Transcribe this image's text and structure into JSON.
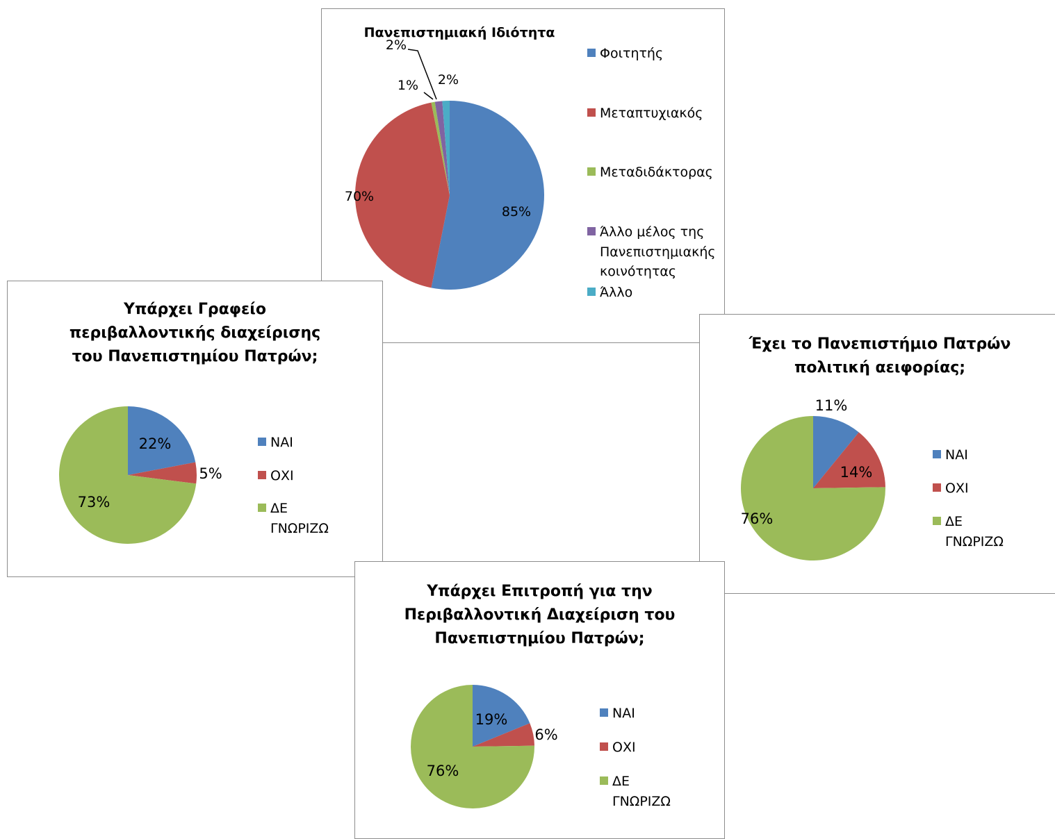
{
  "colors": {
    "blue": "#4f81bd",
    "red": "#c0504d",
    "green": "#9bbb59",
    "purple": "#8064a2",
    "cyan": "#4bacc6"
  },
  "chart_data": [
    {
      "id": "idiotita",
      "type": "pie",
      "title": "Πανεπιστημιακή Ιδιότητα",
      "slices": [
        {
          "label": "Φοιτητής",
          "value": 85,
          "data_label": "85%",
          "color": "#4f81bd"
        },
        {
          "label": "Μεταπτυχιακός",
          "value": 70,
          "data_label": "70%",
          "color": "#c0504d"
        },
        {
          "label": "Μεταδιδάκτορας",
          "value": 1,
          "data_label": "1%",
          "color": "#9bbb59"
        },
        {
          "label": "Άλλο μέλος της Πανεπιστημιακής κοινότητας",
          "value": 2,
          "data_label": "2%",
          "color": "#8064a2"
        },
        {
          "label": "Άλλο",
          "value": 2,
          "data_label": "2%",
          "color": "#4bacc6"
        }
      ],
      "legend_position": "right"
    },
    {
      "id": "grafeio",
      "type": "pie",
      "title": "Υπάρχει Γραφείο περιβαλλοντικής διαχείρισης του Πανεπιστημίου Πατρών;",
      "slices": [
        {
          "label": "ΝΑΙ",
          "value": 22,
          "data_label": "22%",
          "color": "#4f81bd"
        },
        {
          "label": "ΟΧΙ",
          "value": 5,
          "data_label": "5%",
          "color": "#c0504d"
        },
        {
          "label": "ΔΕ ΓΝΩΡΙΖΩ",
          "value": 73,
          "data_label": "73%",
          "color": "#9bbb59"
        }
      ],
      "legend_position": "right"
    },
    {
      "id": "aeiforia",
      "type": "pie",
      "title": "Έχει το Πανεπιστήμιο Πατρών πολιτική αειφορίας;",
      "slices": [
        {
          "label": "ΝΑΙ",
          "value": 11,
          "data_label": "11%",
          "color": "#4f81bd"
        },
        {
          "label": "ΟΧΙ",
          "value": 14,
          "data_label": "14%",
          "color": "#c0504d"
        },
        {
          "label": "ΔΕ ΓΝΩΡΙΖΩ",
          "value": 76,
          "data_label": "76%",
          "color": "#9bbb59"
        }
      ],
      "legend_position": "right"
    },
    {
      "id": "epitropi",
      "type": "pie",
      "title": "Υπάρχει Επιτροπή για την Περιβαλλοντική Διαχείριση του Πανεπιστημίου Πατρών;",
      "slices": [
        {
          "label": "ΝΑΙ",
          "value": 19,
          "data_label": "19%",
          "color": "#4f81bd"
        },
        {
          "label": "ΟΧΙ",
          "value": 6,
          "data_label": "6%",
          "color": "#c0504d"
        },
        {
          "label": "ΔΕ ΓΝΩΡΙΖΩ",
          "value": 76,
          "data_label": "76%",
          "color": "#9bbb59"
        }
      ],
      "legend_position": "right"
    }
  ]
}
